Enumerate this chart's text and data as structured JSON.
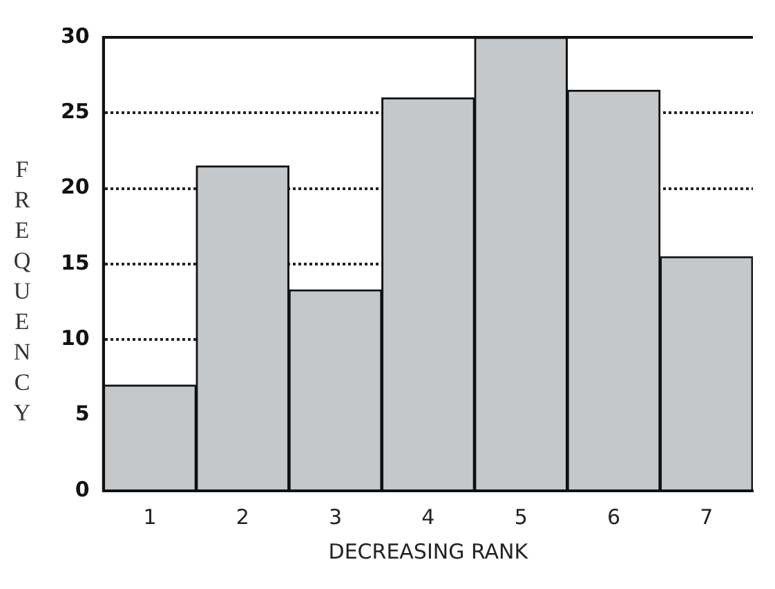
{
  "chart_data": {
    "type": "bar",
    "categories": [
      "1",
      "2",
      "3",
      "4",
      "5",
      "6",
      "7"
    ],
    "values": [
      7,
      21.5,
      13.3,
      26,
      30,
      26.5,
      15.5
    ],
    "color": "#c5c8cb",
    "ylim": [
      0,
      30
    ],
    "yticks": [
      0,
      5,
      10,
      15,
      20,
      25,
      30
    ],
    "grid": "y",
    "line_style": "dotted",
    "xlabel": "DECREASING RANK",
    "ylabel": "FREQUENCY",
    "legend": false
  }
}
